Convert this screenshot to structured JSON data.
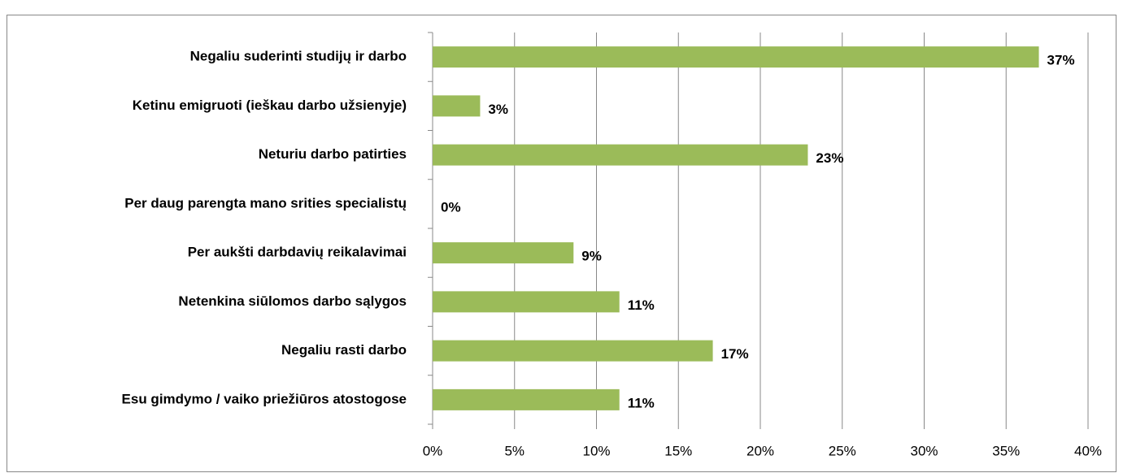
{
  "chart_data": {
    "type": "bar",
    "orientation": "horizontal",
    "categories": [
      "Negaliu suderinti studijų ir darbo",
      "Ketinu emigruoti (ieškau darbo užsienyje)",
      "Neturiu darbo patirties",
      "Per daug parengta mano srities specialistų",
      "Per aukšti darbdavių reikalavimai",
      "Netenkina siūlomos darbo sąlygos",
      "Negaliu rasti darbo",
      "Esu gimdymo / vaiko priežiūros atostogose"
    ],
    "values": [
      37,
      2.9,
      22.9,
      0,
      8.6,
      11.4,
      17.1,
      11.4
    ],
    "value_labels": [
      "37%",
      "3%",
      "23%",
      "0%",
      "9%",
      "11%",
      "17%",
      "11%"
    ],
    "color": "#9bbb59",
    "xlim": [
      0,
      40
    ],
    "xticks": [
      {
        "value": 0,
        "label": "0%"
      },
      {
        "value": 5,
        "label": "5%"
      },
      {
        "value": 10,
        "label": "10%"
      },
      {
        "value": 15,
        "label": "15%"
      },
      {
        "value": 20,
        "label": "20%"
      },
      {
        "value": 25,
        "label": "25%"
      },
      {
        "value": 30,
        "label": "30%"
      },
      {
        "value": 35,
        "label": "35%"
      },
      {
        "value": 40,
        "label": "40%"
      }
    ],
    "grid": true
  }
}
